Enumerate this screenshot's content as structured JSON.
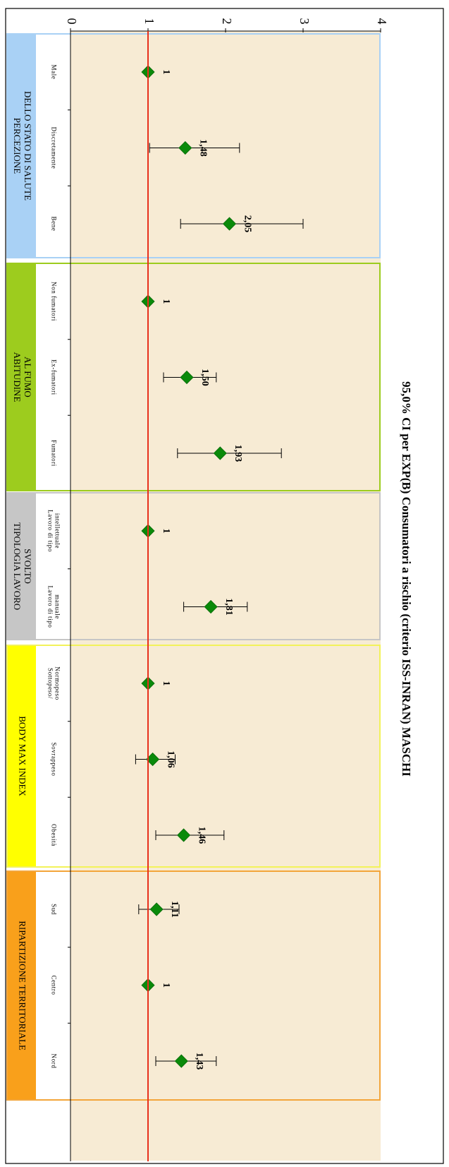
{
  "chart_data": {
    "type": "scatter",
    "title": "95,0% CI per EXP(B) Consumatori a rischio (criterio ISS-INRAN) MASCHI",
    "value_axis": {
      "range": [
        0,
        4
      ],
      "ticks": [
        "0",
        "1",
        "2",
        "3",
        "4"
      ]
    },
    "reference_line": {
      "value": 1,
      "color": "#e8301c"
    },
    "marker_color": "#0a8a0a",
    "groups": [
      {
        "label": "PERCEZIONE DELLO STATO DI SALUTE",
        "label_lines": [
          "PERCEZIONE",
          "DELLO STATO DI SALUTE"
        ],
        "color": "#a9d1f5",
        "border": "#a9d1f5",
        "items": [
          {
            "category": [
              "Male"
            ],
            "value": 1,
            "label": "1",
            "ci": null
          },
          {
            "category": [
              "Discretamente"
            ],
            "value": 1.48,
            "label": "1,48",
            "ci": [
              1.02,
              2.18
            ]
          },
          {
            "category": [
              "Bene"
            ],
            "value": 2.05,
            "label": "2,05",
            "ci": [
              1.42,
              3.0
            ]
          }
        ]
      },
      {
        "label": "ABITUDINE AL FUMO",
        "label_lines": [
          "ABITUDINE",
          "AL FUMO"
        ],
        "color": "#9dcc1e",
        "border": "#9dcc1e",
        "items": [
          {
            "category": [
              "Non fumatori"
            ],
            "value": 1,
            "label": "1",
            "ci": null
          },
          {
            "category": [
              "Ex-fumatori"
            ],
            "value": 1.5,
            "label": "1,50",
            "ci": [
              1.2,
              1.88
            ]
          },
          {
            "category": [
              "Fumatori"
            ],
            "value": 1.93,
            "label": "1,93",
            "ci": [
              1.38,
              2.72
            ]
          }
        ]
      },
      {
        "label": "TIPOLOGIA LAVORO SVOLTO",
        "label_lines": [
          "TIPOLOGIA LAVORO",
          "SVOLTO"
        ],
        "color": "#c6c6c6",
        "border": "#c6c6c6",
        "items": [
          {
            "category": [
              "Lavoro di tipo",
              "intellettuale"
            ],
            "value": 1,
            "label": "1",
            "ci": null
          },
          {
            "category": [
              "Lavoro di tipo",
              "manuale"
            ],
            "value": 1.81,
            "label": "1,81",
            "ci": [
              1.46,
              2.28
            ]
          }
        ]
      },
      {
        "label": "BODY MAX INDEX",
        "label_lines": [
          "BODY MAX INDEX"
        ],
        "color": "#ffff00",
        "border": "#f2f25a",
        "items": [
          {
            "category": [
              "Sottopeso/",
              "Normopeso"
            ],
            "value": 1,
            "label": "1",
            "ci": null
          },
          {
            "category": [
              "Sovrappeso"
            ],
            "value": 1.06,
            "label": "1,06",
            "ci": [
              0.84,
              1.35
            ]
          },
          {
            "category": [
              "Obesità"
            ],
            "value": 1.46,
            "label": "1,46",
            "ci": [
              1.1,
              1.98
            ]
          }
        ]
      },
      {
        "label": "RIPARTIZIONE TERRITORIALE",
        "label_lines": [
          "RIPARTIZIONE TERRITORIALE"
        ],
        "color": "#f9a01b",
        "border": "#f3a53a",
        "items": [
          {
            "category": [
              "Sud"
            ],
            "value": 1.11,
            "label": "1,11",
            "ci": [
              0.88,
              1.4
            ]
          },
          {
            "category": [
              "Centro"
            ],
            "value": 1,
            "label": "1",
            "ci": null
          },
          {
            "category": [
              "Nord"
            ],
            "value": 1.43,
            "label": "1,43",
            "ci": [
              1.1,
              1.88
            ]
          }
        ]
      }
    ],
    "grid": false,
    "legend": "none",
    "plot_background": "#f7ebd4"
  }
}
